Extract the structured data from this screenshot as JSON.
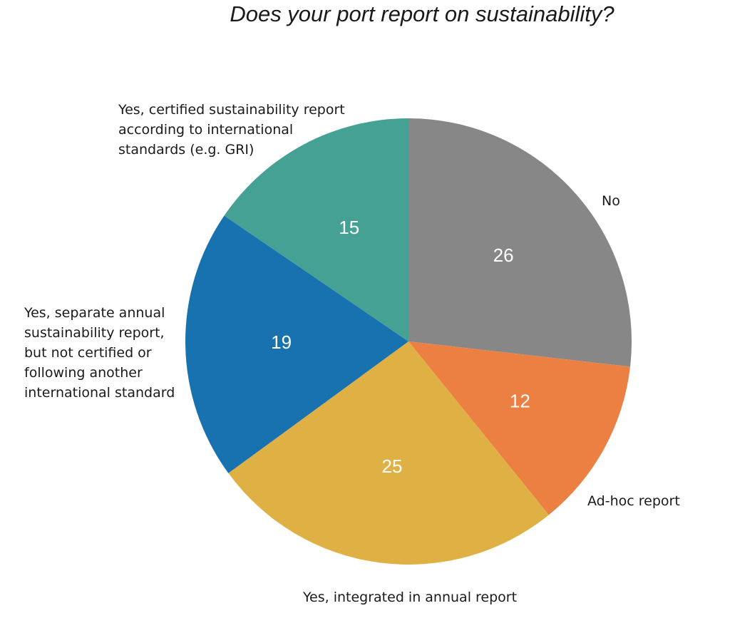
{
  "chart_data": {
    "type": "pie",
    "title": "Does your port report on sustainability?",
    "slices": [
      {
        "label": "No",
        "value": 26,
        "color": "#878787"
      },
      {
        "label": "Ad-hoc report",
        "value": 12,
        "color": "#ec8043"
      },
      {
        "label": "Yes, integrated in annual report",
        "value": 25,
        "color": "#dfb145"
      },
      {
        "label": "Yes, separate annual sustainability report, but not certified or following another international standard",
        "value": 19,
        "color": "#1872b0"
      },
      {
        "label": "Yes, certified sustainability report according to international standards (e.g. GRI)",
        "value": 15,
        "color": "#45a193"
      }
    ]
  }
}
